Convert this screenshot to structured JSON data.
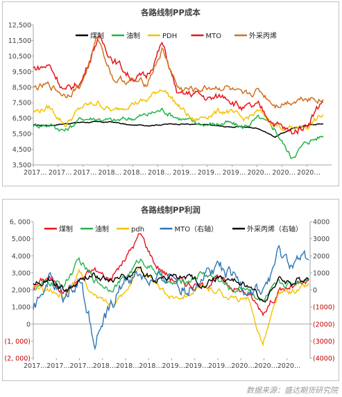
{
  "source_note": "数据来源：盛达期货研究院",
  "colors": {
    "coal": "#000000",
    "oil": "#21b34a",
    "pdh": "#f2c200",
    "mto": "#e8111a",
    "propylene": "#d0701e",
    "axis": "#a6a6a6",
    "text": "#404040",
    "neg": "#c00000"
  },
  "chart_data": [
    {
      "type": "line",
      "title": "各路线制PP成本",
      "ylim": [
        3500,
        12500
      ],
      "yticks": [
        "3,500",
        "4,500",
        "5,500",
        "6,500",
        "7,500",
        "8,500",
        "9,500",
        "10,500",
        "11,500",
        "12,500"
      ],
      "xtick_labels": [
        "2017…",
        "2017…",
        "2017…",
        "2018…",
        "2018…",
        "2018…",
        "2019…",
        "2019…",
        "2019…",
        "2020…",
        "2020…",
        "2020…"
      ],
      "legend_position": "top",
      "series": [
        {
          "name": "煤制",
          "color": "#000000",
          "values": [
            6050,
            6050,
            6150,
            6250,
            6250,
            6250,
            6050,
            6050,
            6100,
            6150,
            6100,
            6050,
            5950,
            5950,
            5850,
            5300,
            5800,
            6050,
            6150
          ]
        },
        {
          "name": "油制",
          "color": "#21b34a",
          "values": [
            6050,
            6100,
            5700,
            6500,
            6500,
            6300,
            6500,
            6700,
            7050,
            6550,
            6200,
            6100,
            6200,
            5900,
            6500,
            5800,
            4000,
            5000,
            5400
          ]
        },
        {
          "name": "PDH",
          "color": "#f2c200",
          "values": [
            6900,
            7200,
            6100,
            7200,
            7500,
            6900,
            7500,
            7600,
            8500,
            7300,
            6300,
            6800,
            7000,
            6400,
            6900,
            6100,
            5800,
            6000,
            6700
          ]
        },
        {
          "name": "MTO",
          "color": "#e8111a",
          "values": [
            9700,
            9900,
            8200,
            8900,
            11700,
            10300,
            9200,
            9100,
            11300,
            7900,
            8100,
            7700,
            8000,
            7100,
            7200,
            6200,
            5500,
            6200,
            7700
          ]
        },
        {
          "name": "外采丙烯",
          "color": "#d0701e",
          "values": [
            8400,
            8600,
            8000,
            8700,
            11700,
            9000,
            8900,
            8700,
            10900,
            8400,
            8300,
            8500,
            8500,
            7800,
            8300,
            7400,
            7600,
            7900,
            7700
          ]
        }
      ]
    },
    {
      "type": "line",
      "title": "各路线制PP利润",
      "ylim": [
        -2000,
        6000
      ],
      "yticks": [
        "(2, 000)",
        "(1, 000)",
        "0",
        "1,000",
        "2,000",
        "3,000",
        "4,000",
        "5,000",
        "6, 000"
      ],
      "y2lim": [
        -4000,
        4000
      ],
      "y2ticks": [
        "(4000)",
        "(3000)",
        "(2000)",
        "(1000)",
        "0",
        "1000",
        "2000",
        "3000",
        "4000"
      ],
      "xtick_labels": [
        "2017…",
        "2017…",
        "2017…",
        "2018…",
        "2018…",
        "2018…",
        "2019…",
        "2019…",
        "2019…",
        "2020…",
        "2020…",
        "2020…"
      ],
      "legend_position": "top",
      "series": [
        {
          "name": "煤制",
          "axis": "left",
          "color": "#e8111a",
          "values": [
            2200,
            2800,
            1900,
            2600,
            3200,
            2600,
            3800,
            5300,
            3500,
            2700,
            2400,
            2200,
            2700,
            2200,
            1800,
            700,
            1900,
            2200,
            2400
          ]
        },
        {
          "name": "油制",
          "axis": "left",
          "color": "#21b34a",
          "values": [
            2100,
            2400,
            2300,
            3700,
            2600,
            2100,
            2700,
            3800,
            3100,
            2300,
            2500,
            3000,
            2700,
            2000,
            2200,
            1300,
            2300,
            2400,
            2800
          ]
        },
        {
          "name": "pdh",
          "axis": "left",
          "color": "#f2c200",
          "values": [
            2100,
            2000,
            1600,
            3000,
            1600,
            1200,
            1900,
            3400,
            2200,
            1600,
            1800,
            2100,
            2000,
            1500,
            1400,
            -1100,
            1700,
            1900,
            2300
          ]
        },
        {
          "name": "MTO（右轴）",
          "axis": "right",
          "color": "#2e75b6",
          "values": [
            -1400,
            800,
            -500,
            800,
            -2800,
            -1200,
            600,
            900,
            300,
            1000,
            -100,
            900,
            1500,
            600,
            100,
            -200,
            2000,
            1500,
            1800
          ]
        },
        {
          "name": "外采丙烯（右轴）",
          "axis": "right",
          "color": "#000000",
          "values": [
            300,
            700,
            -100,
            500,
            900,
            600,
            900,
            1100,
            600,
            800,
            700,
            400,
            700,
            500,
            300,
            -700,
            600,
            400,
            800
          ]
        }
      ]
    }
  ]
}
